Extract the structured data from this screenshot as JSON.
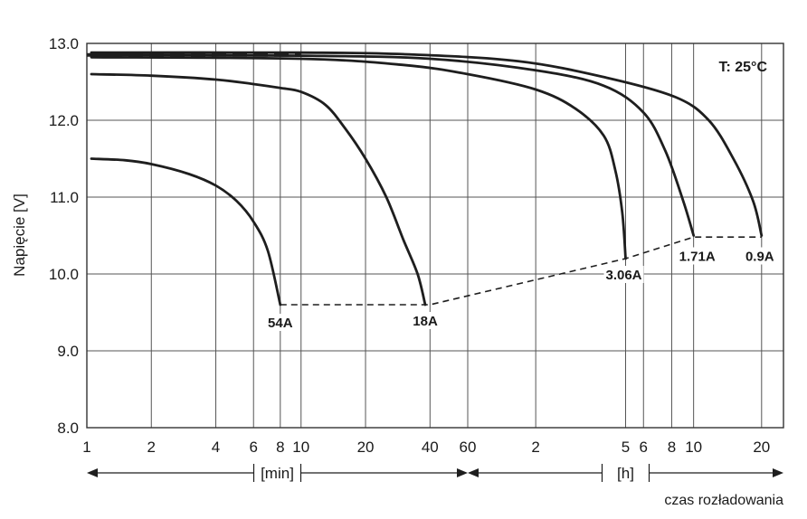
{
  "chart_data": {
    "type": "line",
    "title": "",
    "ylabel": "Napięcie [V]",
    "xlabel": "czas rozładowania",
    "annotation": "T: 25°C",
    "ylim": [
      8.0,
      13.0
    ],
    "y_ticks": [
      "8.0",
      "9.0",
      "10.0",
      "11.0",
      "12.0",
      "13.0"
    ],
    "x_scale": "log",
    "x_unit_segments": [
      {
        "label": "[min]",
        "from_min": 1,
        "to_min": 60
      },
      {
        "label": "[h]",
        "from_min": 60,
        "to_min": 1500
      }
    ],
    "x_ticks": [
      {
        "label": "1",
        "minutes": 1
      },
      {
        "label": "2",
        "minutes": 2
      },
      {
        "label": "4",
        "minutes": 4
      },
      {
        "label": "6",
        "minutes": 6
      },
      {
        "label": "8",
        "minutes": 8
      },
      {
        "label": "10",
        "minutes": 10
      },
      {
        "label": "20",
        "minutes": 20
      },
      {
        "label": "40",
        "minutes": 40
      },
      {
        "label": "60",
        "minutes": 60
      },
      {
        "label": "2",
        "minutes": 120
      },
      {
        "label": "5",
        "minutes": 300
      },
      {
        "label": "6",
        "minutes": 360
      },
      {
        "label": "8",
        "minutes": 480
      },
      {
        "label": "10",
        "minutes": 600
      },
      {
        "label": "20",
        "minutes": 1200
      }
    ],
    "grid": true,
    "series": [
      {
        "name": "54A",
        "points": [
          [
            1.05,
            11.5
          ],
          [
            1.5,
            11.48
          ],
          [
            2,
            11.43
          ],
          [
            3,
            11.3
          ],
          [
            4,
            11.15
          ],
          [
            5,
            10.95
          ],
          [
            6,
            10.68
          ],
          [
            7,
            10.3
          ],
          [
            8,
            9.6
          ]
        ]
      },
      {
        "name": "18A",
        "points": [
          [
            1.05,
            12.6
          ],
          [
            2,
            12.58
          ],
          [
            4,
            12.53
          ],
          [
            6,
            12.47
          ],
          [
            8,
            12.42
          ],
          [
            10,
            12.37
          ],
          [
            13,
            12.2
          ],
          [
            16,
            11.9
          ],
          [
            20,
            11.5
          ],
          [
            25,
            11.0
          ],
          [
            30,
            10.45
          ],
          [
            35,
            10.0
          ],
          [
            38,
            9.6
          ]
        ]
      },
      {
        "name": "3.06A",
        "points": [
          [
            1.05,
            12.82
          ],
          [
            10,
            12.8
          ],
          [
            30,
            12.72
          ],
          [
            60,
            12.6
          ],
          [
            120,
            12.4
          ],
          [
            180,
            12.15
          ],
          [
            240,
            11.8
          ],
          [
            270,
            11.35
          ],
          [
            290,
            10.8
          ],
          [
            300,
            10.2
          ]
        ]
      },
      {
        "name": "1.71A",
        "points": [
          [
            1.05,
            12.85
          ],
          [
            10,
            12.84
          ],
          [
            40,
            12.8
          ],
          [
            120,
            12.65
          ],
          [
            240,
            12.45
          ],
          [
            360,
            12.1
          ],
          [
            450,
            11.6
          ],
          [
            540,
            10.95
          ],
          [
            600,
            10.5
          ]
        ]
      },
      {
        "name": "0.9A",
        "points": [
          [
            1.05,
            12.88
          ],
          [
            10,
            12.88
          ],
          [
            30,
            12.86
          ],
          [
            100,
            12.77
          ],
          [
            250,
            12.55
          ],
          [
            500,
            12.3
          ],
          [
            700,
            12.0
          ],
          [
            900,
            11.5
          ],
          [
            1100,
            10.95
          ],
          [
            1200,
            10.5
          ]
        ]
      }
    ],
    "cutoff_line": {
      "style": "dashed",
      "points": [
        [
          8,
          9.6
        ],
        [
          38,
          9.6
        ],
        [
          40,
          9.6
        ],
        [
          300,
          10.2
        ],
        [
          600,
          10.48
        ],
        [
          1200,
          10.48
        ]
      ]
    },
    "top_dashed_line": {
      "style": "dashed",
      "from_min": 1,
      "to_min": 10,
      "y": 12.85
    }
  }
}
